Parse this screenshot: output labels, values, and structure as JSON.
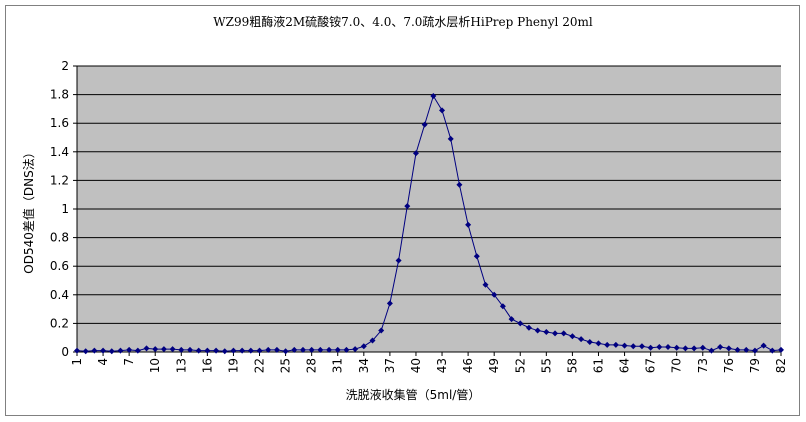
{
  "chart_data": {
    "type": "line",
    "title": "WZ99粗酶液2M硫酸铵7.0、4.0、7.0疏水层析HiPrep Phenyl 20ml",
    "x_label": "洗脱液收集管（5ml/管）",
    "y_label": "OD540差值（DNS法）",
    "x": [
      1,
      2,
      3,
      4,
      5,
      6,
      7,
      8,
      9,
      10,
      11,
      12,
      13,
      14,
      15,
      16,
      17,
      18,
      19,
      20,
      21,
      22,
      23,
      24,
      25,
      26,
      27,
      28,
      29,
      30,
      31,
      32,
      33,
      34,
      35,
      36,
      37,
      38,
      39,
      40,
      41,
      42,
      43,
      44,
      45,
      46,
      47,
      48,
      49,
      50,
      51,
      52,
      53,
      54,
      55,
      56,
      57,
      58,
      59,
      60,
      61,
      62,
      63,
      64,
      65,
      66,
      67,
      68,
      69,
      70,
      71,
      72,
      73,
      74,
      75,
      76,
      77,
      78,
      79,
      80,
      81,
      82
    ],
    "series": [
      {
        "name": "OD540",
        "color": "#000080",
        "values": [
          0.01,
          0.005,
          0.01,
          0.01,
          0.005,
          0.01,
          0.015,
          0.01,
          0.025,
          0.02,
          0.02,
          0.02,
          0.015,
          0.015,
          0.01,
          0.01,
          0.01,
          0.005,
          0.01,
          0.01,
          0.01,
          0.01,
          0.015,
          0.015,
          0.005,
          0.015,
          0.015,
          0.015,
          0.015,
          0.015,
          0.015,
          0.015,
          0.02,
          0.04,
          0.08,
          0.15,
          0.34,
          0.64,
          1.02,
          1.39,
          1.59,
          1.79,
          1.69,
          1.49,
          1.17,
          0.89,
          0.67,
          0.47,
          0.4,
          0.32,
          0.23,
          0.2,
          0.17,
          0.15,
          0.14,
          0.13,
          0.13,
          0.11,
          0.09,
          0.07,
          0.06,
          0.05,
          0.05,
          0.045,
          0.04,
          0.04,
          0.03,
          0.035,
          0.035,
          0.03,
          0.025,
          0.025,
          0.03,
          0.01,
          0.035,
          0.025,
          0.015,
          0.015,
          0.01,
          0.045,
          0.01,
          0.015
        ]
      }
    ],
    "xlim": [
      1,
      82
    ],
    "xticks": [
      1,
      4,
      7,
      10,
      13,
      16,
      19,
      22,
      25,
      28,
      31,
      34,
      37,
      40,
      43,
      46,
      49,
      52,
      55,
      58,
      61,
      64,
      67,
      70,
      73,
      76,
      79,
      82
    ],
    "ylim": [
      0,
      2
    ],
    "yticks": [
      0,
      0.2,
      0.4,
      0.6,
      0.8,
      1,
      1.2,
      1.4,
      1.6,
      1.8,
      2
    ],
    "grid": true,
    "plot_background": "#c0c0c0"
  }
}
